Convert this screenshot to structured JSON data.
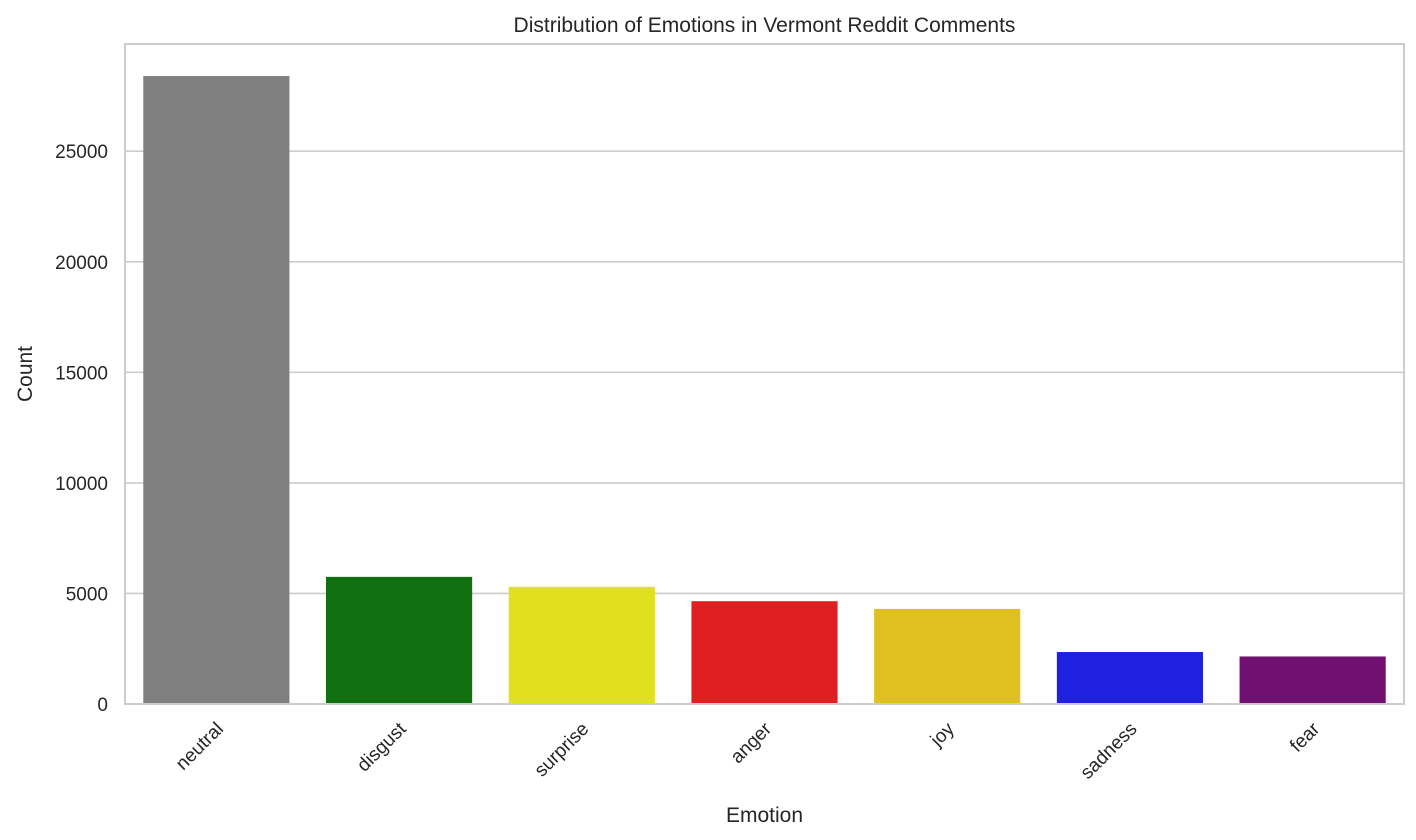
{
  "chart_data": {
    "type": "bar",
    "title": "Distribution of Emotions in Vermont Reddit Comments",
    "xlabel": "Emotion",
    "ylabel": "Count",
    "categories": [
      "neutral",
      "disgust",
      "surprise",
      "anger",
      "joy",
      "sadness",
      "fear"
    ],
    "values": [
      28400,
      5750,
      5300,
      4650,
      4300,
      2350,
      2150
    ],
    "colors": [
      "#808080",
      "#107010",
      "#e0e01e",
      "#e02020",
      "#e0c020",
      "#2020e0",
      "#701070"
    ],
    "yticks": [
      0,
      5000,
      10000,
      15000,
      20000,
      25000
    ],
    "ylim": [
      0,
      29850
    ],
    "grid": "horizontal",
    "legend": "none"
  }
}
